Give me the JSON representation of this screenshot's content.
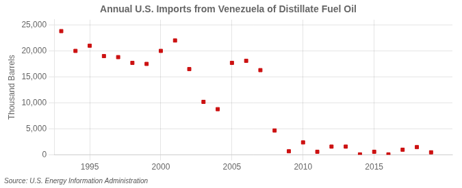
{
  "chart_data": {
    "type": "scatter",
    "title": "Annual U.S. Imports from Venezuela of Distillate Fuel Oil",
    "ylabel": "Thousand Barrels",
    "annotation": "Source: U.S. Energy Information Administration",
    "x": [
      1993,
      1994,
      1995,
      1996,
      1997,
      1998,
      1999,
      2000,
      2001,
      2002,
      2003,
      2004,
      2005,
      2006,
      2007,
      2008,
      2009,
      2010,
      2011,
      2012,
      2013,
      2014,
      2015,
      2016,
      2017,
      2018,
      2019
    ],
    "values": [
      23800,
      20000,
      21000,
      19000,
      18800,
      17700,
      17500,
      20000,
      22000,
      16500,
      10200,
      8800,
      17700,
      18100,
      16300,
      4700,
      700,
      2400,
      600,
      1600,
      1600,
      100,
      600,
      100,
      1000,
      1500,
      500
    ],
    "color": "#cc1111",
    "marker": "square",
    "xlim": [
      1992.5,
      2020.5
    ],
    "xticks": [
      1995,
      2000,
      2005,
      2010,
      2015
    ],
    "ylim": [
      0,
      26000
    ],
    "yticks": [
      0,
      {
        "value": 5000,
        "label": "5,000"
      },
      {
        "value": 10000,
        "label": "10,000"
      },
      {
        "value": 15000,
        "label": "15,000"
      },
      {
        "value": 20000,
        "label": "20,000"
      },
      {
        "value": 25000,
        "label": "25,000"
      }
    ],
    "grid": true
  }
}
